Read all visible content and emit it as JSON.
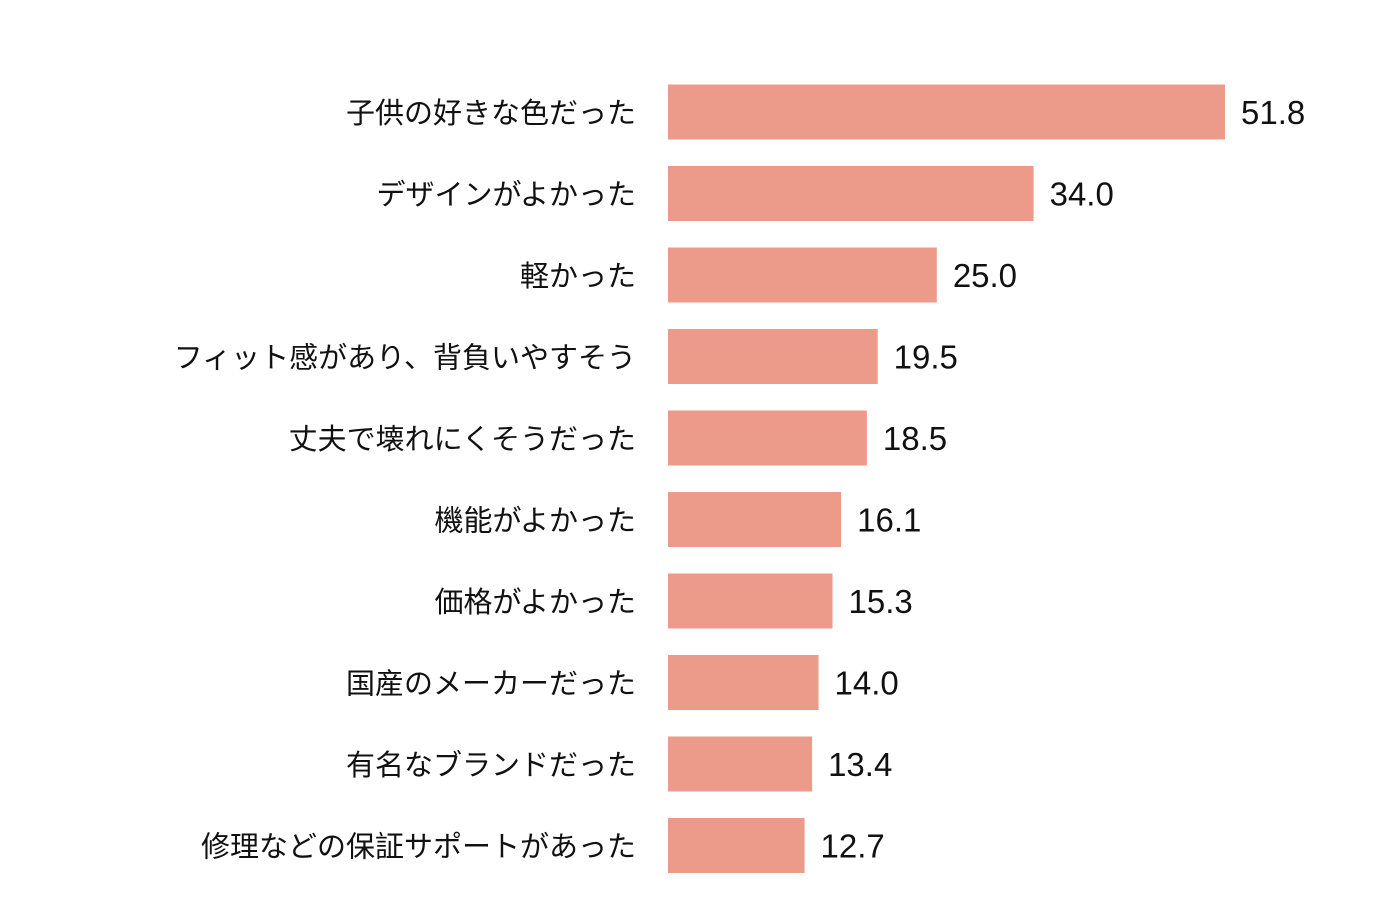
{
  "chart_data": {
    "type": "bar",
    "orientation": "horizontal",
    "title": "",
    "xlabel": "",
    "ylabel": "",
    "xlim": [
      0,
      51.8
    ],
    "grid": false,
    "bar_color": "#ec9b8a",
    "categories": [
      "子供の好きな色だった",
      "デザインがよかった",
      "軽かった",
      "フィット感があり、背負いやすそう",
      "丈夫で壊れにくそうだった",
      "機能がよかった",
      "価格がよかった",
      "国産のメーカーだった",
      "有名なブランドだった",
      "修理などの保証サポートがあった"
    ],
    "values": [
      51.8,
      34.0,
      25.0,
      19.5,
      18.5,
      16.1,
      15.3,
      14.0,
      13.4,
      12.7
    ],
    "value_labels": [
      "51.8",
      "34.0",
      "25.0",
      "19.5",
      "18.5",
      "16.1",
      "15.3",
      "14.0",
      "13.4",
      "12.7"
    ]
  }
}
